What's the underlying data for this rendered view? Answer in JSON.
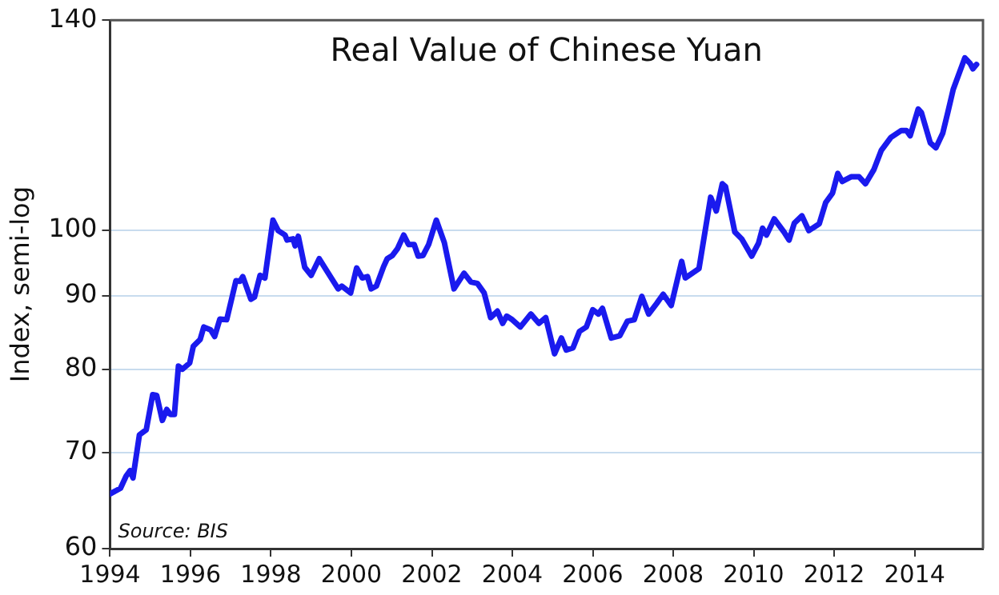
{
  "chart_data": {
    "type": "line",
    "title": "Real Value of Chinese Yuan",
    "ylabel": "Index, semi-log",
    "annotations": [
      "Source: BIS"
    ],
    "x": [
      1994.0,
      1994.26,
      1994.4,
      1994.5,
      1994.57,
      1994.73,
      1994.9,
      1995.06,
      1995.16,
      1995.3,
      1995.41,
      1995.5,
      1995.6,
      1995.7,
      1995.8,
      1995.98,
      1996.07,
      1996.24,
      1996.33,
      1996.5,
      1996.6,
      1996.73,
      1996.9,
      1997.13,
      1997.23,
      1997.3,
      1997.5,
      1997.59,
      1997.73,
      1997.85,
      1998.05,
      1998.18,
      1998.35,
      1998.4,
      1998.55,
      1998.6,
      1998.68,
      1998.84,
      1999.0,
      1999.2,
      1999.5,
      1999.67,
      1999.76,
      1999.98,
      2000.13,
      2000.27,
      2000.4,
      2000.49,
      2000.62,
      2000.8,
      2000.89,
      2001.02,
      2001.15,
      2001.3,
      2001.42,
      2001.56,
      2001.66,
      2001.78,
      2001.92,
      2002.11,
      2002.31,
      2002.55,
      2002.8,
      2002.97,
      2003.13,
      2003.3,
      2003.46,
      2003.63,
      2003.76,
      2003.86,
      2004.0,
      2004.2,
      2004.46,
      2004.66,
      2004.83,
      2005.05,
      2005.22,
      2005.34,
      2005.51,
      2005.67,
      2005.84,
      2006.0,
      2006.14,
      2006.24,
      2006.46,
      2006.67,
      2006.86,
      2007.03,
      2007.22,
      2007.39,
      2007.59,
      2007.75,
      2007.95,
      2008.21,
      2008.3,
      2008.64,
      2008.93,
      2009.07,
      2009.22,
      2009.3,
      2009.53,
      2009.7,
      2009.95,
      2010.12,
      2010.22,
      2010.32,
      2010.51,
      2010.75,
      2010.88,
      2011.01,
      2011.2,
      2011.37,
      2011.63,
      2011.79,
      2011.96,
      2012.09,
      2012.2,
      2012.42,
      2012.62,
      2012.78,
      2012.99,
      2013.17,
      2013.41,
      2013.67,
      2013.8,
      2013.89,
      2014.09,
      2014.17,
      2014.39,
      2014.53,
      2014.7,
      2014.83,
      2014.96,
      2015.25,
      2015.38,
      2015.45,
      2015.54
    ],
    "series": [
      {
        "color": "#1a1aee",
        "values": [
          65.5,
          66.1,
          67.4,
          68.0,
          67.2,
          72.0,
          72.6,
          76.8,
          76.7,
          73.7,
          75.0,
          74.4,
          74.4,
          80.4,
          80.0,
          80.8,
          83.0,
          83.9,
          85.6,
          85.2,
          84.3,
          86.7,
          86.6,
          92.2,
          92.1,
          92.8,
          89.5,
          89.8,
          93.0,
          92.6,
          101.6,
          99.9,
          99.2,
          98.4,
          98.6,
          97.5,
          99.0,
          94.2,
          93.0,
          95.5,
          92.6,
          91.0,
          91.4,
          90.4,
          94.1,
          92.6,
          92.8,
          91.0,
          91.4,
          94.3,
          95.5,
          96.0,
          97.1,
          99.2,
          97.7,
          97.7,
          95.9,
          96.0,
          97.7,
          101.6,
          98.0,
          91.0,
          93.3,
          92.0,
          91.8,
          90.4,
          86.9,
          87.8,
          86.1,
          87.1,
          86.6,
          85.6,
          87.4,
          86.1,
          86.9,
          82.0,
          84.1,
          82.5,
          82.8,
          85.0,
          85.6,
          88.0,
          87.4,
          88.2,
          84.1,
          84.4,
          86.4,
          86.6,
          89.9,
          87.4,
          88.9,
          90.2,
          88.6,
          95.1,
          92.6,
          94.0,
          105.4,
          103.1,
          107.7,
          107.2,
          99.7,
          98.6,
          95.9,
          97.9,
          100.3,
          99.2,
          101.8,
          99.7,
          98.4,
          101.1,
          102.3,
          99.9,
          101.0,
          104.5,
          106.1,
          109.5,
          108.1,
          108.9,
          108.9,
          107.7,
          110.2,
          113.6,
          116.0,
          117.3,
          117.3,
          116.3,
          121.4,
          120.7,
          115.0,
          114.1,
          116.8,
          120.9,
          125.3,
          131.8,
          130.6,
          129.5,
          130.4
        ]
      }
    ],
    "xlim": [
      1994,
      2015.7
    ],
    "xticks": [
      1994,
      1996,
      1998,
      2000,
      2002,
      2004,
      2006,
      2008,
      2010,
      2012,
      2014
    ],
    "ylim": [
      60,
      140
    ],
    "yticks": [
      60,
      70,
      80,
      90,
      100,
      140
    ],
    "log": "y",
    "grid": "y"
  }
}
